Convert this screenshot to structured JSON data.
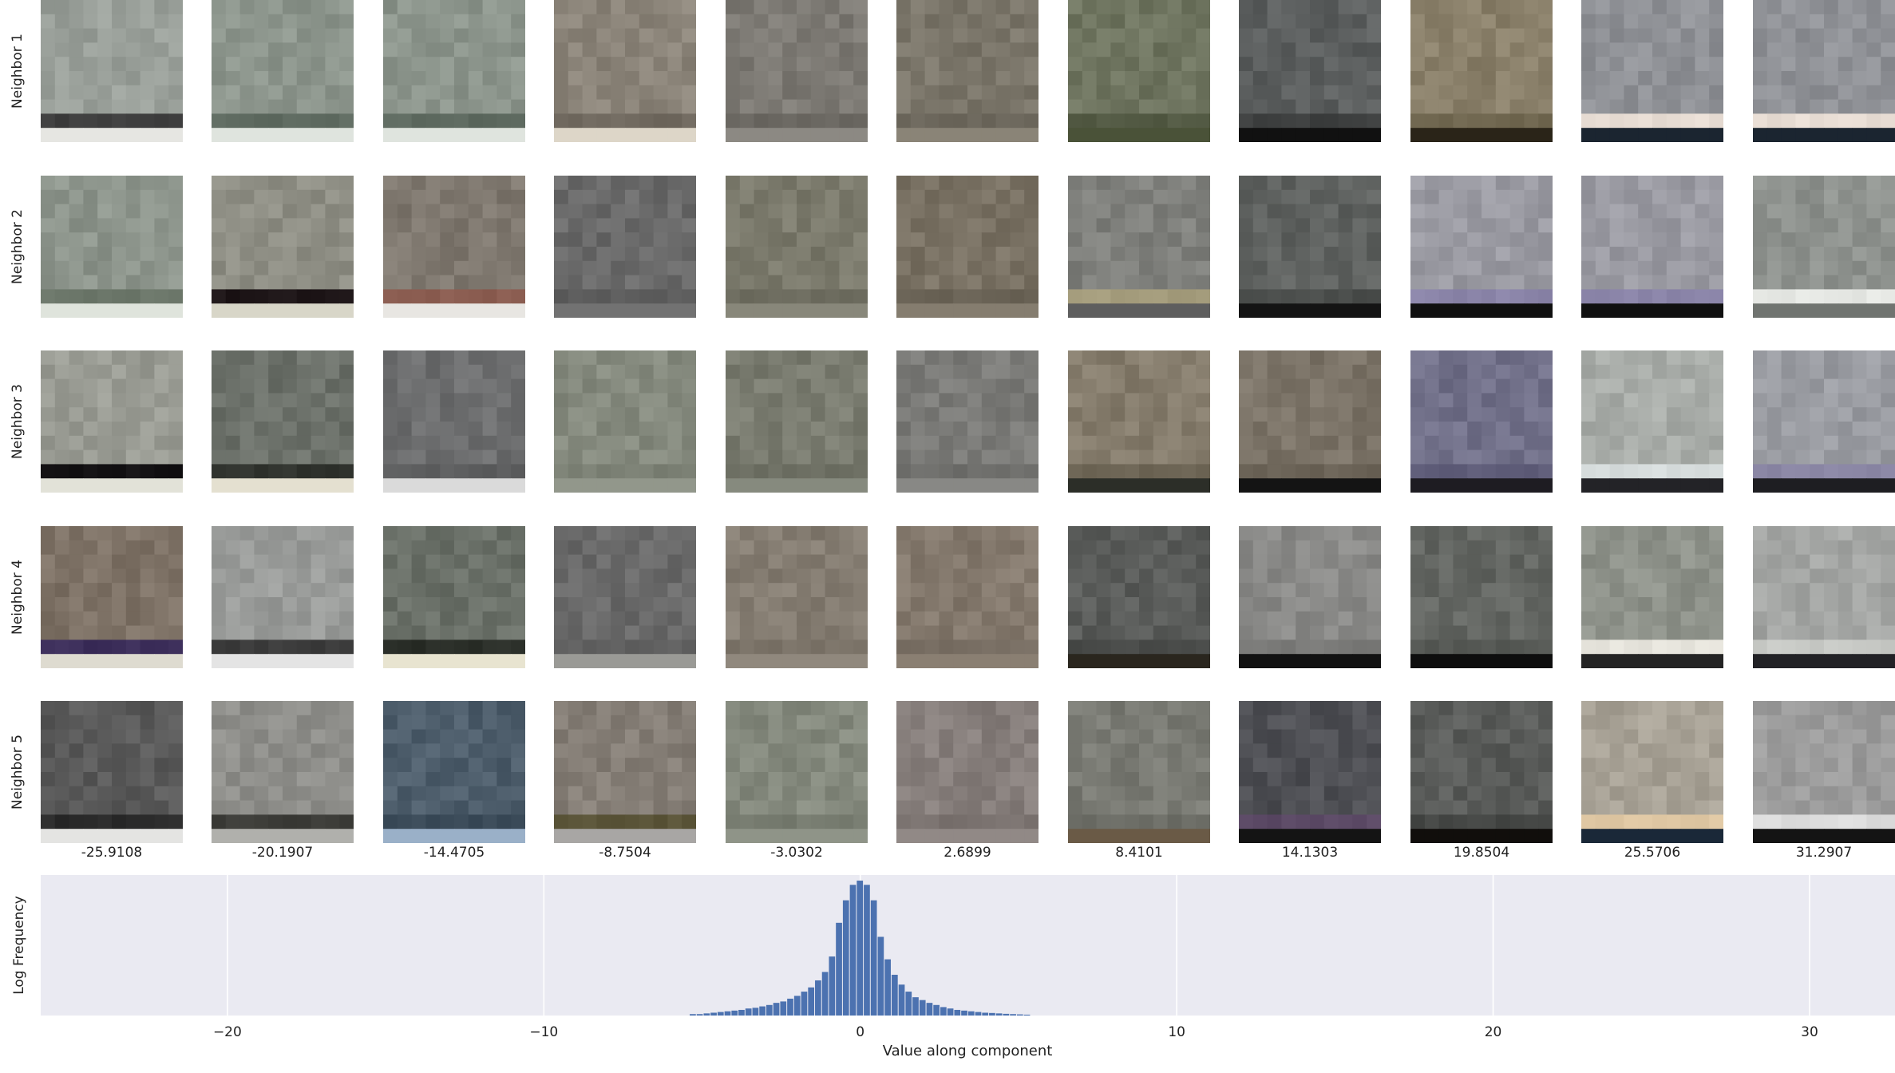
{
  "neighbor_labels": [
    "Neighbor 1",
    "Neighbor 2",
    "Neighbor 3",
    "Neighbor 4",
    "Neighbor 5"
  ],
  "column_values": [
    "-25.9108",
    "-20.1907",
    "-14.4705",
    "-8.7504",
    "-3.0302",
    "2.6899",
    "8.4101",
    "14.1303",
    "19.8504",
    "25.5706",
    "31.2907"
  ],
  "tiles": [
    [
      {
        "base": "#9aa09a",
        "accent": "#3f3f3f",
        "accent2": "#e6e6e2"
      },
      {
        "base": "#8c958c",
        "accent": "#5e6a60",
        "accent2": "#dfe4de"
      },
      {
        "base": "#8c958c",
        "accent": "#5e6a60",
        "accent2": "#dfe4de"
      },
      {
        "base": "#8b8479",
        "accent": "#6f685e",
        "accent2": "#ddd6c8"
      },
      {
        "base": "#7d7a74",
        "accent": "#6b6862",
        "accent2": "#8c8983"
      },
      {
        "base": "#7b766a",
        "accent": "#6c675c",
        "accent2": "#8a8477"
      },
      {
        "base": "#6f7560",
        "accent": "#535a44",
        "accent2": "#4a5238"
      },
      {
        "base": "#5c5f5f",
        "accent": "#3d3f3f",
        "accent2": "#111111"
      },
      {
        "base": "#8a806a",
        "accent": "#716851",
        "accent2": "#2a2418"
      },
      {
        "base": "#8f9196",
        "accent": "#e8ddd4",
        "accent2": "#1b2530"
      },
      {
        "base": "#8f9196",
        "accent": "#e8ddd4",
        "accent2": "#1b2530"
      }
    ],
    [
      {
        "base": "#8d958c",
        "accent": "#6a7568",
        "accent2": "#dfe4dc"
      },
      {
        "base": "#8e8e84",
        "accent": "#1e1618",
        "accent2": "#d8d6c8"
      },
      {
        "base": "#7f786f",
        "accent": "#8a5c50",
        "accent2": "#e8e6e2"
      },
      {
        "base": "#6a6a6a",
        "accent": "#5c5c5c",
        "accent2": "#727272"
      },
      {
        "base": "#7b7a6c",
        "accent": "#6c6b5e",
        "accent2": "#88877a"
      },
      {
        "base": "#7a7264",
        "accent": "#6a6356",
        "accent2": "#857d6f"
      },
      {
        "base": "#7f807c",
        "accent": "#a49c7c",
        "accent2": "#5e5e5e"
      },
      {
        "base": "#5f6260",
        "accent": "#4a4d4b",
        "accent2": "#141414"
      },
      {
        "base": "#9a9aa2",
        "accent": "#8a84a8",
        "accent2": "#101010"
      },
      {
        "base": "#9a9aa2",
        "accent": "#8a84a8",
        "accent2": "#101010"
      },
      {
        "base": "#8e928e",
        "accent": "#e6e8e4",
        "accent2": "#707470"
      }
    ],
    [
      {
        "base": "#9a9c94",
        "accent": "#141214",
        "accent2": "#e2e2d8"
      },
      {
        "base": "#6c716a",
        "accent": "#30332e",
        "accent2": "#e4e0d0"
      },
      {
        "base": "#6e6f70",
        "accent": "#5c5d5e",
        "accent2": "#dadada"
      },
      {
        "base": "#858a7e",
        "accent": "#7a7f73",
        "accent2": "#92978b"
      },
      {
        "base": "#7a7c70",
        "accent": "#6c6e62",
        "accent2": "#868a7e"
      },
      {
        "base": "#7b7b78",
        "accent": "#6e6e6b",
        "accent2": "#888885"
      },
      {
        "base": "#857c6c",
        "accent": "#6e6656",
        "accent2": "#2c2e28"
      },
      {
        "base": "#7c7468",
        "accent": "#6a6256",
        "accent2": "#141414"
      },
      {
        "base": "#717089",
        "accent": "#5e5c78",
        "accent2": "#1e1c22"
      },
      {
        "base": "#a8aca8",
        "accent": "#d6dcdc",
        "accent2": "#232327"
      },
      {
        "base": "#9a9ca2",
        "accent": "#8a86a4",
        "accent2": "#1e1e22"
      }
    ],
    [
      {
        "base": "#7e7266",
        "accent": "#3c2e5a",
        "accent2": "#dedbd0"
      },
      {
        "base": "#9a9c9a",
        "accent": "#3c3c3c",
        "accent2": "#e4e4e4"
      },
      {
        "base": "#6a7068",
        "accent": "#2a2e28",
        "accent2": "#e8e4d0"
      },
      {
        "base": "#6a6a6a",
        "accent": "#606060",
        "accent2": "#9a9a96"
      },
      {
        "base": "#857d72",
        "accent": "#7a7267",
        "accent2": "#90887d"
      },
      {
        "base": "#84796d",
        "accent": "#776d62",
        "accent2": "#8a7f72"
      },
      {
        "base": "#5a5c5a",
        "accent": "#484a48",
        "accent2": "#2a261e"
      },
      {
        "base": "#8a8a88",
        "accent": "#7a7a78",
        "accent2": "#121212"
      },
      {
        "base": "#636662",
        "accent": "#555854",
        "accent2": "#0e0e0e"
      },
      {
        "base": "#8e928a",
        "accent": "#e6e4dc",
        "accent2": "#242424"
      },
      {
        "base": "#a4a6a4",
        "accent": "#c8cac6",
        "accent2": "#222226"
      }
    ],
    [
      {
        "base": "#5a5a5a",
        "accent": "#2a2a2a",
        "accent2": "#e4e4e2"
      },
      {
        "base": "#8e8e8a",
        "accent": "#3c3c38",
        "accent2": "#b0b0ac"
      },
      {
        "base": "#4e5e6c",
        "accent": "#3a4a58",
        "accent2": "#9ab0c8"
      },
      {
        "base": "#857e76",
        "accent": "#5a5438",
        "accent2": "#a8a6a4"
      },
      {
        "base": "#858a7e",
        "accent": "#767b6f",
        "accent2": "#8f9488"
      },
      {
        "base": "#877f7c",
        "accent": "#7a726f",
        "accent2": "#918986"
      },
      {
        "base": "#7a7b74",
        "accent": "#6c6d66",
        "accent2": "#6a5a46"
      },
      {
        "base": "#4e4f54",
        "accent": "#5c4a66",
        "accent2": "#141414"
      },
      {
        "base": "#5a5c5a",
        "accent": "#444644",
        "accent2": "#110e0c"
      },
      {
        "base": "#a8a296",
        "accent": "#e0c8a4",
        "accent2": "#1a2838"
      },
      {
        "base": "#9c9c9c",
        "accent": "#dcdcdc",
        "accent2": "#141414"
      }
    ]
  ],
  "histogram": {
    "ylabel": "Log Frequency",
    "xlabel": "Value along component",
    "x_ticks": [
      "−20",
      "−10",
      "0",
      "10",
      "20",
      "30"
    ],
    "background": "#eaeaf2",
    "bar_color": "#4c72b0"
  },
  "chart_data": {
    "type": "bar",
    "title": "",
    "xlabel": "Value along component",
    "ylabel": "Log Frequency",
    "xlim": [
      -25.9,
      32.7
    ],
    "ylim": [
      0,
      1.0
    ],
    "x_ticks": [
      -20,
      -10,
      0,
      10,
      20,
      30
    ],
    "bin_width": 0.22,
    "log_scale": true,
    "grid": true,
    "x": [
      -5.28,
      -5.06,
      -4.84,
      -4.62,
      -4.4,
      -4.18,
      -3.96,
      -3.74,
      -3.52,
      -3.3,
      -3.08,
      -2.86,
      -2.64,
      -2.42,
      -2.2,
      -1.98,
      -1.76,
      -1.54,
      -1.32,
      -1.1,
      -0.88,
      -0.66,
      -0.44,
      -0.22,
      0.0,
      0.22,
      0.44,
      0.66,
      0.88,
      1.1,
      1.32,
      1.54,
      1.76,
      1.98,
      2.2,
      2.42,
      2.64,
      2.86,
      3.08,
      3.3,
      3.52,
      3.74,
      3.96,
      4.18,
      4.4,
      4.62,
      4.84,
      5.06,
      5.28
    ],
    "values": [
      0.01,
      0.01,
      0.015,
      0.02,
      0.025,
      0.03,
      0.035,
      0.04,
      0.05,
      0.055,
      0.065,
      0.075,
      0.09,
      0.1,
      0.12,
      0.14,
      0.17,
      0.2,
      0.25,
      0.31,
      0.42,
      0.66,
      0.82,
      0.93,
      0.96,
      0.93,
      0.82,
      0.56,
      0.4,
      0.29,
      0.22,
      0.17,
      0.13,
      0.11,
      0.09,
      0.075,
      0.06,
      0.05,
      0.04,
      0.035,
      0.03,
      0.025,
      0.02,
      0.018,
      0.015,
      0.012,
      0.01,
      0.008,
      0.006
    ]
  }
}
